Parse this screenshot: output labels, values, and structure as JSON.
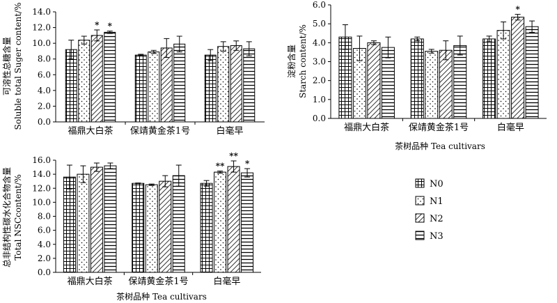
{
  "chart_data": [
    {
      "type": "bar",
      "categories": [
        "福鼎大白茶",
        "保靖黄金茶1号",
        "白毫早"
      ],
      "ylabel_cn": "可溶性总糖含量",
      "ylabel_en": "Soluble total Suger content/%",
      "xlabel": "",
      "ylim": [
        0,
        14
      ],
      "yticks": [
        "0.0",
        "2.0",
        "4.0",
        "6.0",
        "8.0",
        "10.0",
        "12.0",
        "14.0"
      ],
      "series": [
        {
          "name": "N0",
          "values": [
            9.2,
            8.5,
            8.5
          ],
          "errors": [
            1.2,
            0.1,
            0.7
          ]
        },
        {
          "name": "N1",
          "values": [
            10.4,
            8.9,
            9.6
          ],
          "errors": [
            0.5,
            0.2,
            0.6
          ]
        },
        {
          "name": "N2",
          "values": [
            11.0,
            9.4,
            9.7
          ],
          "errors": [
            0.7,
            1.2,
            0.6
          ]
        },
        {
          "name": "N3",
          "values": [
            11.4,
            9.9,
            9.3
          ],
          "errors": [
            0.15,
            1.0,
            0.9
          ]
        }
      ],
      "annotations": [
        {
          "category": 0,
          "series": 2,
          "text": "*"
        },
        {
          "category": 0,
          "series": 3,
          "text": "*"
        }
      ]
    },
    {
      "type": "bar",
      "categories": [
        "福鼎大白茶",
        "保靖黄金茶1号",
        "白毫早"
      ],
      "ylabel_cn": "淀粉含量",
      "ylabel_en": "Starch content/%",
      "xlabel": "茶树品种 Tea cultivars",
      "ylim": [
        0,
        6
      ],
      "yticks": [
        "0.0",
        "1.0",
        "2.0",
        "3.0",
        "4.0",
        "5.0",
        "6.0"
      ],
      "series": [
        {
          "name": "N0",
          "values": [
            4.3,
            4.2,
            4.2
          ],
          "errors": [
            0.65,
            0.1,
            0.15
          ]
        },
        {
          "name": "N1",
          "values": [
            3.7,
            3.55,
            4.65
          ],
          "errors": [
            0.65,
            0.1,
            0.45
          ]
        },
        {
          "name": "N2",
          "values": [
            4.0,
            3.6,
            5.35
          ],
          "errors": [
            0.1,
            0.5,
            0.15
          ]
        },
        {
          "name": "N3",
          "values": [
            3.75,
            3.85,
            4.85
          ],
          "errors": [
            0.55,
            0.5,
            0.3
          ]
        }
      ],
      "annotations": [
        {
          "category": 2,
          "series": 2,
          "text": "*"
        }
      ]
    },
    {
      "type": "bar",
      "categories": [
        "福鼎大白茶",
        "保靖黄金茶1号",
        "白毫早"
      ],
      "ylabel_cn": "总非结构性碳水化合物含量",
      "ylabel_en": "Total NSCcontent/%",
      "xlabel": "茶树品种 Tea cultivars",
      "ylim": [
        0,
        16
      ],
      "yticks": [
        "0.0",
        "2.0",
        "4.0",
        "6.0",
        "8.0",
        "10.0",
        "12.0",
        "14.0",
        "16.0"
      ],
      "series": [
        {
          "name": "N0",
          "values": [
            13.6,
            12.7,
            12.7
          ],
          "errors": [
            1.7,
            0.05,
            0.4
          ]
        },
        {
          "name": "N1",
          "values": [
            14.0,
            12.5,
            14.3
          ],
          "errors": [
            1.2,
            0.1,
            0.15
          ]
        },
        {
          "name": "N2",
          "values": [
            15.0,
            13.0,
            15.1
          ],
          "errors": [
            0.6,
            0.8,
            0.8
          ]
        },
        {
          "name": "N3",
          "values": [
            15.2,
            13.8,
            14.2
          ],
          "errors": [
            0.4,
            1.5,
            0.6
          ]
        }
      ],
      "annotations": [
        {
          "category": 2,
          "series": 1,
          "text": "**"
        },
        {
          "category": 2,
          "series": 2,
          "text": "**"
        },
        {
          "category": 2,
          "series": 3,
          "text": "*"
        }
      ]
    }
  ],
  "legend": {
    "items": [
      {
        "label": "N0",
        "pattern": "grid"
      },
      {
        "label": "N1",
        "pattern": "dots"
      },
      {
        "label": "N2",
        "pattern": "diag"
      },
      {
        "label": "N3",
        "pattern": "hlines"
      }
    ]
  }
}
